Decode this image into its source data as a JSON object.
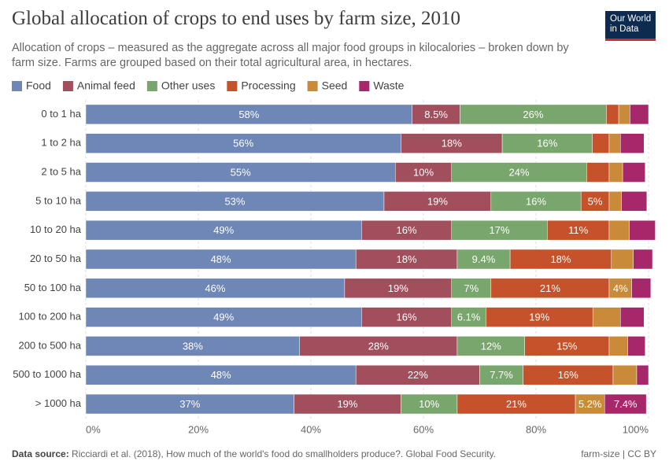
{
  "chart_data": {
    "type": "stacked-bar-horizontal",
    "title": "Global allocation of crops to end uses by farm size, 2010",
    "subtitle": "Allocation of crops – measured as the aggregate across all major food groups in kilocalories – broken down by farm size. Farms are grouped based on their total agricultural area, in hectares.",
    "logo": "Our World in Data",
    "source_label": "Data source:",
    "source": "Ricciardi et al. (2018), How much of the world's food do smallholders produce?. Global Food Security.",
    "footer_right": "farm-size | CC BY",
    "categories": [
      "0 to 1 ha",
      "1 to 2 ha",
      "2 to 5 ha",
      "5 to 10 ha",
      "10 to 20 ha",
      "20 to 50 ha",
      "50 to 100 ha",
      "100 to 200 ha",
      "200 to 500 ha",
      "500 to 1000 ha",
      "> 1000 ha"
    ],
    "xlim": [
      0,
      100
    ],
    "xticks": [
      {
        "value": 0,
        "label": "0%"
      },
      {
        "value": 20,
        "label": "20%"
      },
      {
        "value": 40,
        "label": "40%"
      },
      {
        "value": 60,
        "label": "60%"
      },
      {
        "value": 80,
        "label": "80%"
      },
      {
        "value": 100,
        "label": "100%"
      }
    ],
    "grid": true,
    "legend": "top",
    "series": [
      {
        "name": "Food",
        "color": "#6e87b6",
        "values": [
          58,
          56,
          55,
          53,
          49,
          48,
          46,
          49,
          38,
          48,
          37
        ],
        "value_labels": [
          "58%",
          "56%",
          "55%",
          "53%",
          "49%",
          "48%",
          "46%",
          "49%",
          "38%",
          "48%",
          "37%"
        ]
      },
      {
        "name": "Animal feed",
        "color": "#a14f5d",
        "values": [
          8.5,
          18,
          10,
          19,
          16,
          18,
          19,
          16,
          28,
          22,
          19
        ],
        "value_labels": [
          "8.5%",
          "18%",
          "10%",
          "19%",
          "16%",
          "18%",
          "19%",
          "16%",
          "28%",
          "22%",
          "19%"
        ]
      },
      {
        "name": "Other uses",
        "color": "#79a66c",
        "values": [
          26,
          16,
          24,
          16,
          17,
          9.4,
          7,
          6.1,
          12,
          7.7,
          10
        ],
        "value_labels": [
          "26%",
          "16%",
          "24%",
          "16%",
          "17%",
          "9.4%",
          "7%",
          "6.1%",
          "12%",
          "7.7%",
          "10%"
        ]
      },
      {
        "name": "Processing",
        "color": "#c5522b",
        "values": [
          2.2,
          3,
          4,
          5,
          11,
          18,
          21,
          19,
          15,
          16,
          21
        ],
        "value_labels": [
          null,
          null,
          null,
          "5%",
          "11%",
          "18%",
          "21%",
          "19%",
          "15%",
          "16%",
          "21%"
        ]
      },
      {
        "name": "Seed",
        "color": "#c98a3a",
        "values": [
          2,
          2,
          2.4,
          2.2,
          3.6,
          3.9,
          4,
          4.9,
          3.3,
          4.2,
          5.2
        ],
        "value_labels": [
          null,
          null,
          null,
          null,
          null,
          null,
          "4%",
          null,
          null,
          null,
          "5.2%"
        ]
      },
      {
        "name": "Waste",
        "color": "#a6286a",
        "values": [
          3.3,
          4.2,
          4,
          4.5,
          4.6,
          3.4,
          3.4,
          4.2,
          3.1,
          2.1,
          7.4
        ],
        "value_labels": [
          null,
          null,
          null,
          null,
          null,
          null,
          null,
          null,
          null,
          null,
          "7.4%"
        ]
      }
    ]
  }
}
